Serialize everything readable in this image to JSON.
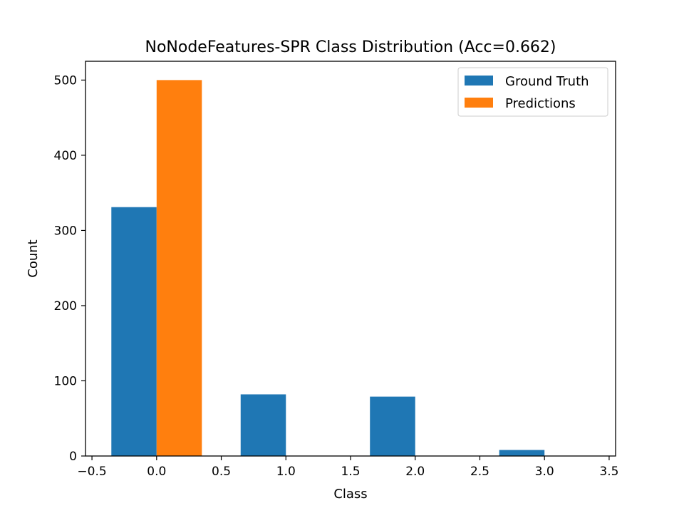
{
  "chart_data": {
    "type": "bar",
    "title": "NoNodeFeatures-SPR Class Distribution (Acc=0.662)",
    "xlabel": "Class",
    "ylabel": "Count",
    "xlim": [
      -0.55,
      3.55
    ],
    "ylim": [
      0,
      525
    ],
    "x_ticks": [
      -0.5,
      0.0,
      0.5,
      1.0,
      1.5,
      2.0,
      2.5,
      3.0,
      3.5
    ],
    "x_tick_labels": [
      "−0.5",
      "0.0",
      "0.5",
      "1.0",
      "1.5",
      "2.0",
      "2.5",
      "3.0",
      "3.5"
    ],
    "y_ticks": [
      0,
      100,
      200,
      300,
      400,
      500
    ],
    "y_tick_labels": [
      "0",
      "100",
      "200",
      "300",
      "400",
      "500"
    ],
    "bar_width": 0.35,
    "grid": false,
    "legend_position": "top-right",
    "x": [
      0,
      1,
      2,
      3
    ],
    "series": [
      {
        "name": "Ground Truth",
        "color": "#1f77b4",
        "offset": -0.175,
        "values": [
          331,
          82,
          79,
          8
        ]
      },
      {
        "name": "Predictions",
        "color": "#ff7f0e",
        "offset": 0.175,
        "values": [
          500,
          0,
          0,
          0
        ]
      }
    ]
  }
}
